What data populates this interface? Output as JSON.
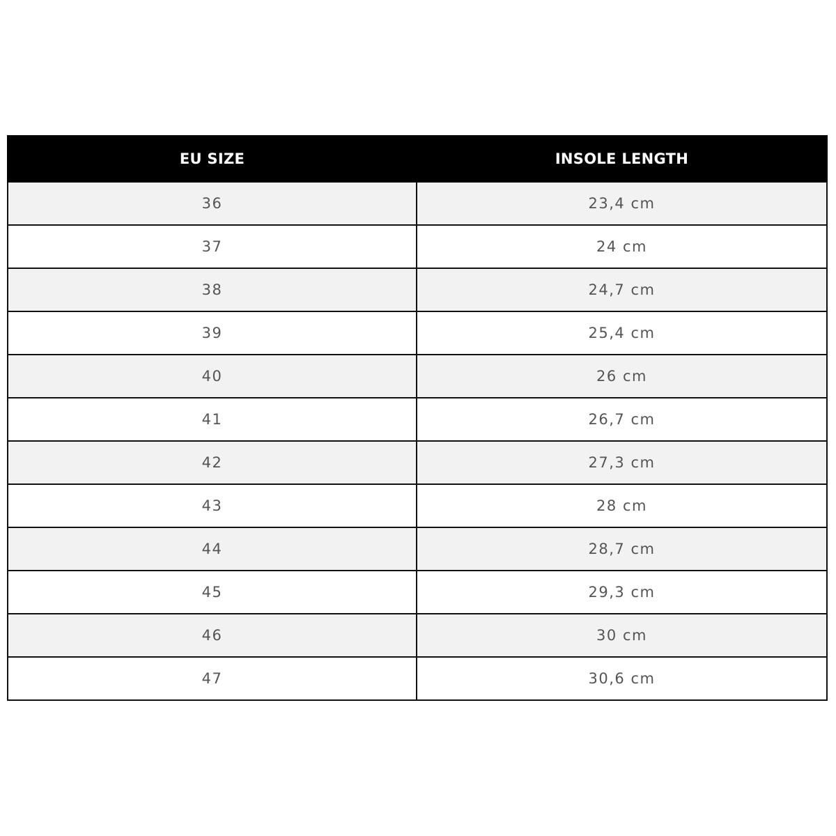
{
  "table": {
    "headers": [
      "EU SIZE",
      "INSOLE LENGTH"
    ],
    "rows": [
      [
        "36",
        "23,4 cm"
      ],
      [
        "37",
        "24 cm"
      ],
      [
        "38",
        "24,7 cm"
      ],
      [
        "39",
        "25,4 cm"
      ],
      [
        "40",
        "26 cm"
      ],
      [
        "41",
        "26,7 cm"
      ],
      [
        "42",
        "27,3 cm"
      ],
      [
        "43",
        "28 cm"
      ],
      [
        "44",
        "28,7 cm"
      ],
      [
        "45",
        "29,3 cm"
      ],
      [
        "46",
        "30 cm"
      ],
      [
        "47",
        "30,6 cm"
      ]
    ]
  },
  "colors": {
    "header_bg": "#000000",
    "header_text": "#ffffff",
    "stripe": "#f2f2f2",
    "cell_text": "#555555"
  }
}
